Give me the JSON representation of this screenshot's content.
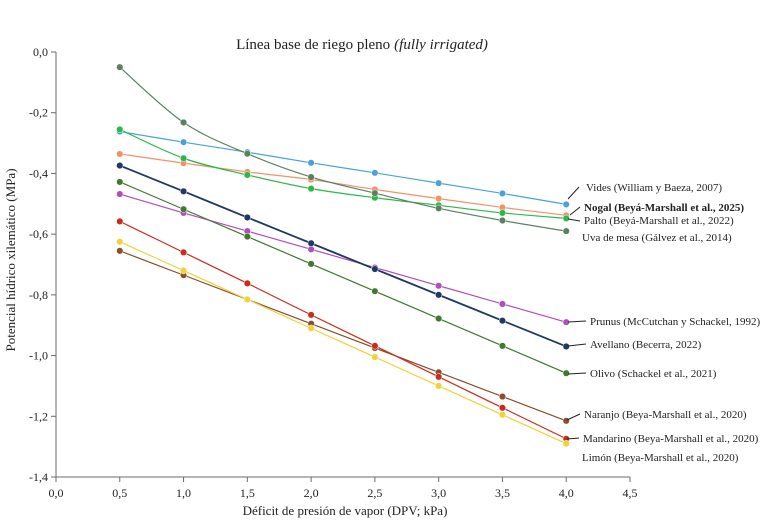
{
  "chart_data": {
    "type": "line",
    "title": "Línea base de riego pleno",
    "title_italic": "(fully irrigated)",
    "xlabel": "Déficit de presión de vapor (DPV; kPa)",
    "ylabel": "Potencial hídrico xilemático (MPa)",
    "xlim": [
      0,
      4.5
    ],
    "ylim": [
      -1.4,
      0
    ],
    "x_ticks": [
      "0,0",
      "0,5",
      "1,0",
      "1,5",
      "2,0",
      "2,5",
      "3,0",
      "3,5",
      "4,0",
      "4,5"
    ],
    "y_ticks": [
      "0,0",
      "-0,2",
      "-0,4",
      "-0,6",
      "-0,8",
      "-1,0",
      "-1,2",
      "-1,4"
    ],
    "x": [
      0.5,
      1.0,
      1.5,
      2.0,
      2.5,
      3.0,
      3.5,
      4.0
    ],
    "series": [
      {
        "name": "Vides (William y Baeza, 2007)",
        "color": "#4aa3d8",
        "bold": false,
        "values": [
          -0.262,
          -0.297,
          -0.33,
          -0.365,
          -0.398,
          -0.432,
          -0.466,
          -0.502
        ]
      },
      {
        "name": "Nogal (Beyá-Marshall et al., 2025)",
        "color": "#f0926a",
        "bold": true,
        "values": [
          -0.336,
          -0.366,
          -0.395,
          -0.42,
          -0.453,
          -0.483,
          -0.512,
          -0.538
        ]
      },
      {
        "name": "Palto (Beyá-Marshall et al., 2022)",
        "color": "#2bb84a",
        "bold": false,
        "values": [
          -0.255,
          -0.35,
          -0.405,
          -0.45,
          -0.48,
          -0.505,
          -0.53,
          -0.548
        ]
      },
      {
        "name": "Uva de mesa (Gálvez et al., 2014)",
        "color": "#5a8060",
        "bold": false,
        "values": [
          -0.05,
          -0.232,
          -0.335,
          -0.412,
          -0.465,
          -0.515,
          -0.555,
          -0.59
        ]
      },
      {
        "name": "Prunus (McCutchan y Schackel, 1992)",
        "color": "#b04dbf",
        "bold": false,
        "values": [
          -0.468,
          -0.53,
          -0.59,
          -0.65,
          -0.71,
          -0.77,
          -0.83,
          -0.89
        ]
      },
      {
        "name": "Avellano (Becerra, 2022)",
        "color": "#1f3864",
        "bold": false,
        "values": [
          -0.374,
          -0.459,
          -0.545,
          -0.63,
          -0.715,
          -0.8,
          -0.885,
          -0.97
        ]
      },
      {
        "name": "Olivo (Schackel et al., 2021)",
        "color": "#3f7a2e",
        "bold": false,
        "values": [
          -0.428,
          -0.518,
          -0.608,
          -0.698,
          -0.788,
          -0.878,
          -0.968,
          -1.058
        ]
      },
      {
        "name": "Naranjo  (Beya-Marshall et al., 2020)",
        "color": "#8a4e2a",
        "bold": false,
        "values": [
          -0.655,
          -0.735,
          -0.815,
          -0.895,
          -0.975,
          -1.055,
          -1.135,
          -1.215
        ]
      },
      {
        "name": "Mandarino (Beya-Marshall et al., 2020)",
        "color": "#cc2a1a",
        "bold": false,
        "values": [
          -0.558,
          -0.66,
          -0.762,
          -0.866,
          -0.968,
          -1.07,
          -1.172,
          -1.274
        ]
      },
      {
        "name": "Limón  (Beya-Marshall et al., 2020)",
        "color": "#f2d13a",
        "bold": false,
        "values": [
          -0.625,
          -0.72,
          -0.815,
          -0.91,
          -1.005,
          -1.1,
          -1.195,
          -1.29
        ]
      }
    ]
  }
}
